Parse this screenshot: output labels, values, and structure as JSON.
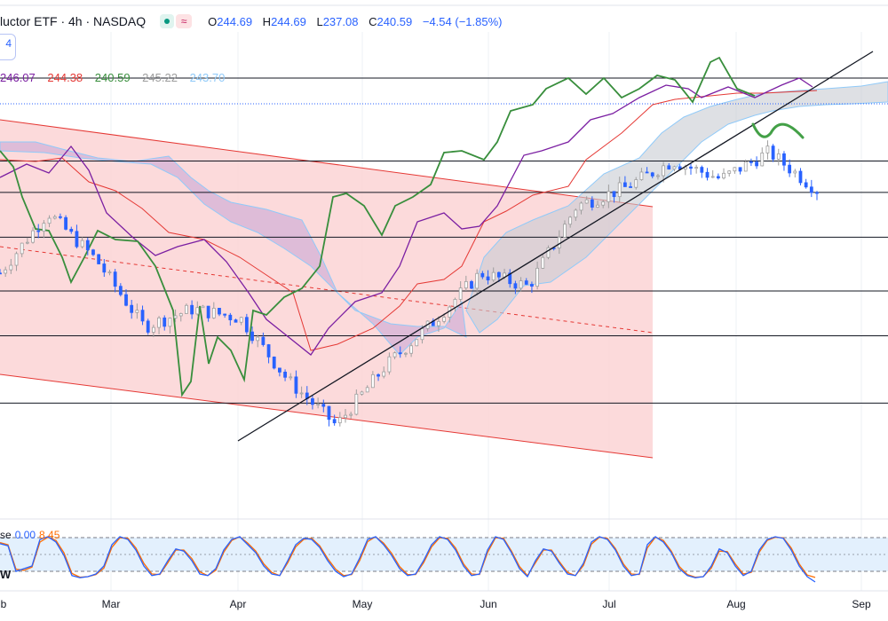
{
  "header": {
    "title": "luctor ETF · 4h · NASDAQ",
    "ohlc": {
      "o_label": "O",
      "o": "244.69",
      "h_label": "H",
      "h": "244.69",
      "l_label": "L",
      "l": "237.08",
      "c_label": "C",
      "c": "240.59",
      "change": "−4.54 (−1.85%)"
    },
    "box_button_label": "4"
  },
  "indicator_values": {
    "items": [
      {
        "text": "246.07",
        "color": "#7b1fa2"
      },
      {
        "text": "244.38",
        "color": "#e53935"
      },
      {
        "text": "240.59",
        "color": "#388e3c"
      },
      {
        "text": "245.22",
        "color": "#9e9e9e"
      },
      {
        "text": "243.70",
        "color": "#90caf9"
      }
    ]
  },
  "stochastic": {
    "label": "se",
    "k_value": "0.00",
    "d_value": "8.45",
    "k_color": "#2962ff",
    "d_color": "#ff6d00",
    "w_label": "W",
    "k_path": [
      72,
      68,
      20,
      25,
      30,
      80,
      85,
      75,
      50,
      12,
      8,
      10,
      15,
      30,
      70,
      85,
      80,
      60,
      30,
      12,
      15,
      40,
      62,
      58,
      40,
      15,
      12,
      25,
      60,
      80,
      85,
      70,
      55,
      30,
      15,
      12,
      40,
      70,
      82,
      80,
      65,
      40,
      20,
      10,
      15,
      45,
      80,
      85,
      70,
      50,
      25,
      12,
      15,
      40,
      70,
      85,
      80,
      60,
      30,
      12,
      15,
      60,
      85,
      80,
      55,
      25,
      10,
      40,
      62,
      58,
      35,
      15,
      12,
      35,
      75,
      85,
      80,
      60,
      30,
      12,
      15,
      70,
      85,
      75,
      55,
      25,
      12,
      8,
      10,
      30,
      62,
      55,
      30,
      12,
      20,
      60,
      80,
      85,
      82,
      60,
      30,
      10,
      0
    ],
    "d_path": [
      74,
      70,
      24,
      22,
      28,
      75,
      84,
      78,
      55,
      16,
      9,
      10,
      14,
      26,
      65,
      83,
      82,
      64,
      35,
      15,
      14,
      36,
      60,
      60,
      44,
      19,
      12,
      22,
      56,
      78,
      85,
      73,
      58,
      34,
      18,
      12,
      36,
      66,
      80,
      82,
      68,
      44,
      24,
      12,
      14,
      40,
      76,
      85,
      73,
      54,
      29,
      14,
      14,
      36,
      66,
      83,
      82,
      64,
      34,
      15,
      14,
      55,
      83,
      82,
      58,
      29,
      12,
      36,
      60,
      60,
      38,
      18,
      12,
      31,
      71,
      84,
      82,
      63,
      34,
      15,
      14,
      64,
      84,
      78,
      58,
      29,
      14,
      9,
      10,
      26,
      58,
      57,
      34,
      15,
      18,
      56,
      78,
      84,
      83,
      64,
      34,
      13,
      8.45
    ]
  },
  "x_labels": [
    "b",
    "Mar",
    "Apr",
    "May",
    "Jun",
    "Jul",
    "Aug",
    "Sep"
  ],
  "colors": {
    "conversion_line": "#7b1fa2",
    "base_line": "#e53935",
    "lagging_span": "#388e3c",
    "cloud_bull": "#c8cbd2",
    "cloud_bear": "#c9a9d6",
    "span_b": "#90caf9",
    "channel_fill": "#fbd3d5",
    "channel_border": "#e53935",
    "up_candle": "#ffffff",
    "down_candle": "#2962ff",
    "curve_annotation": "#43a047"
  },
  "chart_data": {
    "type": "candlestick",
    "instrument": "luctor ETF · 4h · NASDAQ",
    "timeframe": "4h",
    "ylim": [
      180,
      275
    ],
    "x_range": [
      "Feb",
      "Sep"
    ],
    "horizontal_levels": [
      265.5,
      247.0,
      240.0,
      230.0,
      218.0,
      208.0,
      193.0
    ],
    "price_series": [
      {
        "t": "Feb",
        "close": 222.0
      },
      {
        "t": "Feb-mid",
        "close": 235.5
      },
      {
        "t": "Feb-end",
        "close": 225.0
      },
      {
        "t": "Mar",
        "close": 210.0
      },
      {
        "t": "Mar-mid",
        "close": 214.0
      },
      {
        "t": "Mar-end",
        "close": 212.0
      },
      {
        "t": "Apr",
        "close": 198.0
      },
      {
        "t": "Apr-low",
        "close": 188.0
      },
      {
        "t": "Apr-mid",
        "close": 201.0
      },
      {
        "t": "May",
        "close": 211.0
      },
      {
        "t": "May-mid",
        "close": 222.0
      },
      {
        "t": "Jun",
        "close": 219.0
      },
      {
        "t": "Jun-mid",
        "close": 237.0
      },
      {
        "t": "Jul",
        "close": 241.0
      },
      {
        "t": "Jul-mid",
        "close": 247.0
      },
      {
        "t": "Aug",
        "close": 243.0
      },
      {
        "t": "Aug-mid",
        "close": 249.0
      },
      {
        "t": "Aug-end",
        "close": 240.59
      }
    ]
  }
}
